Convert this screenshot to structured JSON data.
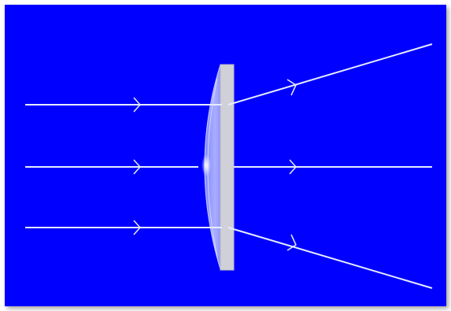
{
  "diagram": {
    "background_color": "#0000FF",
    "frame_color": "#FFFFFF",
    "ray_color": "#E6ECFF",
    "lens_flat_color": "#D0D0D8",
    "lens_curved_color": "#AAB4FF",
    "lens_type": "plano-convex-like diverging (concave side incident)",
    "icons": [
      "ray-arrow-icon"
    ]
  }
}
